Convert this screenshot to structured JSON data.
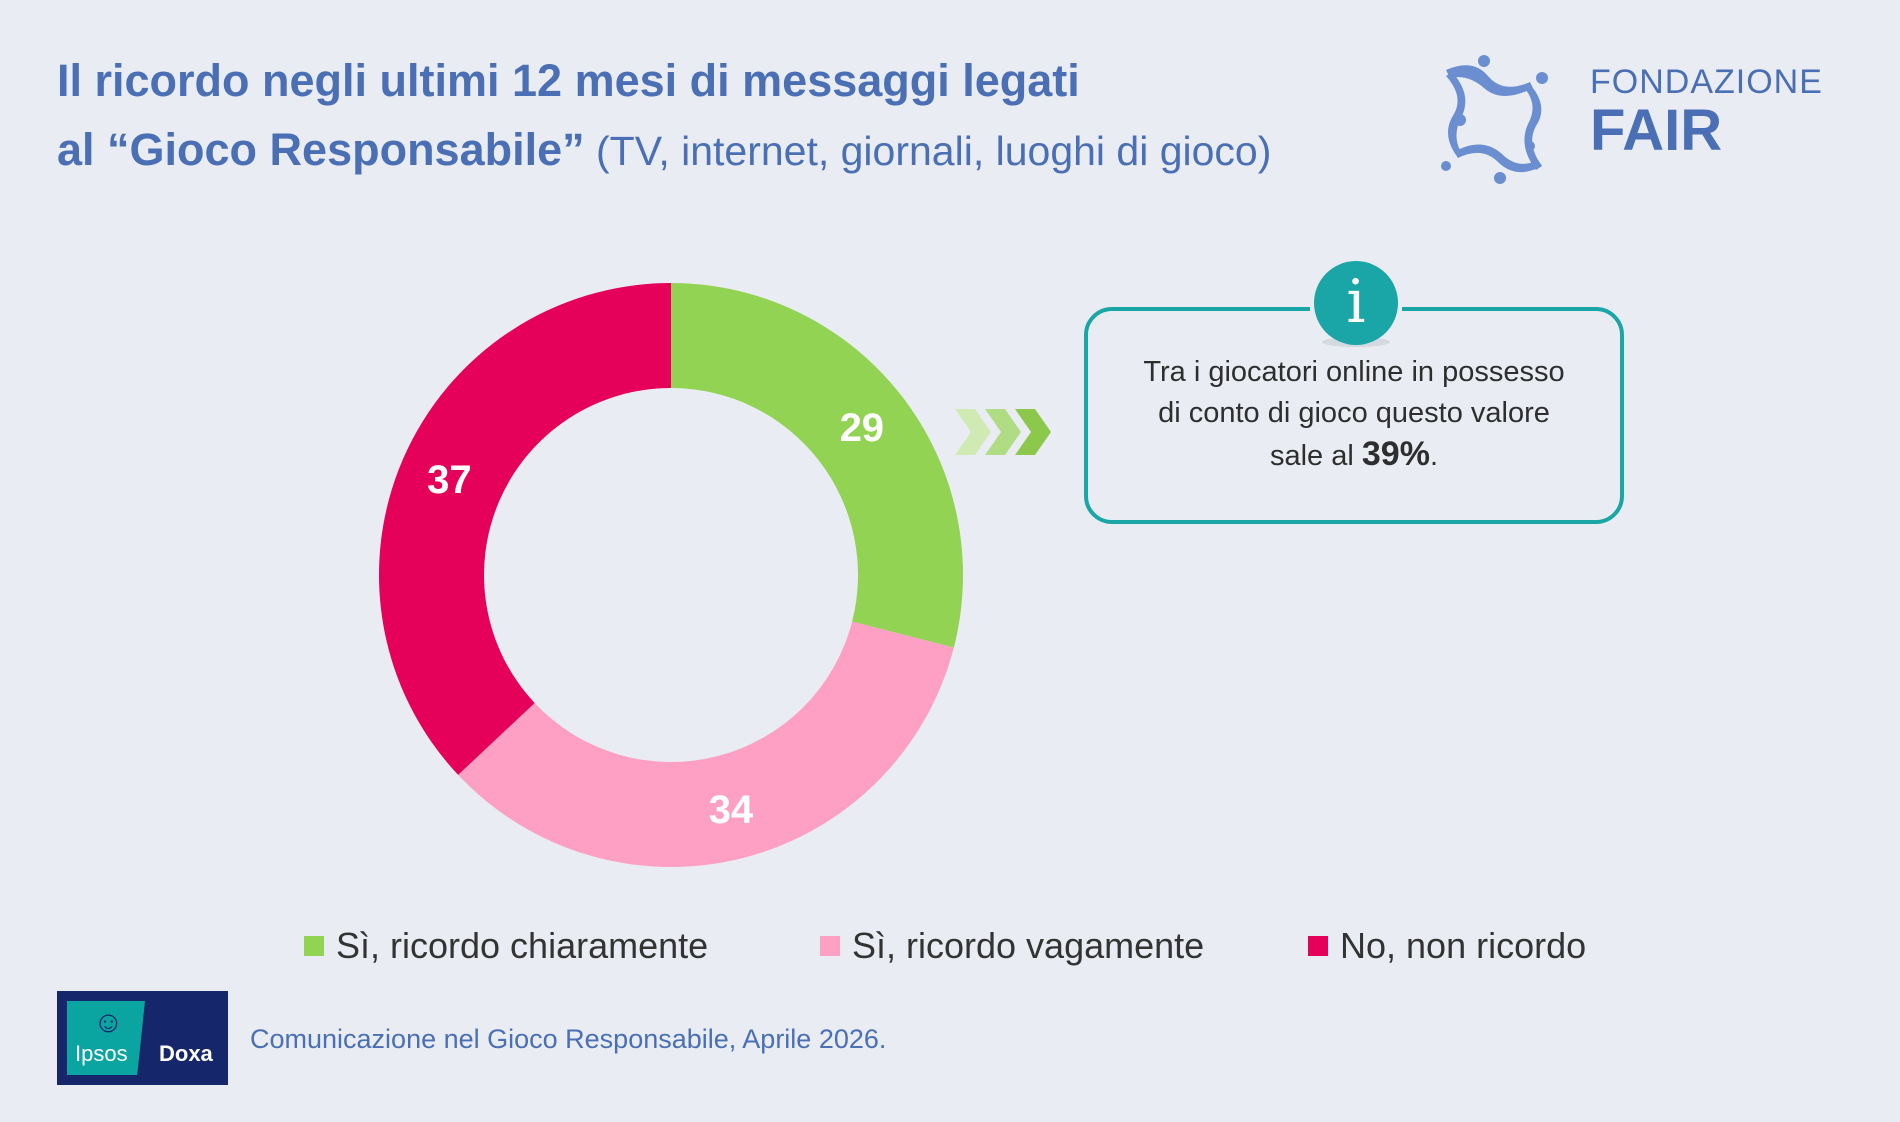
{
  "header": {
    "title_line1": "Il ricordo negli ultimi 12 mesi di messaggi legati",
    "title_line2_bold": "al “Gioco Responsabile”",
    "title_line2_regular": " (TV, internet, giornali, luoghi di gioco)"
  },
  "brand": {
    "name_line1": "FONDAZIONE",
    "name_line2": "FAIR",
    "color": "#4a6fb5"
  },
  "chart_data": {
    "type": "pie",
    "categories": [
      "Sì, ricordo chiaramente",
      "Sì, ricordo vagamente",
      "No, non ricordo"
    ],
    "values": [
      29,
      34,
      37
    ],
    "colors": [
      "#93d353",
      "#fda0c4",
      "#e5005a"
    ],
    "data_labels": [
      "29",
      "34",
      "37"
    ],
    "legend_position": "bottom",
    "donut": true
  },
  "info_box": {
    "text_line1": "Tra i giocatori online in possesso",
    "text_line2": "di conto di gioco questo valore",
    "text_line3_prefix": "sale al ",
    "highlight": "39%",
    "text_line3_suffix": ".",
    "border_color": "#1aa6a6",
    "icon": "info-icon",
    "icon_letter": "i"
  },
  "footer": {
    "partner_logo_part1": "Ipsos",
    "partner_logo_part2": "Doxa",
    "source": "Comunicazione nel Gioco Responsabile, Aprile 2026."
  }
}
